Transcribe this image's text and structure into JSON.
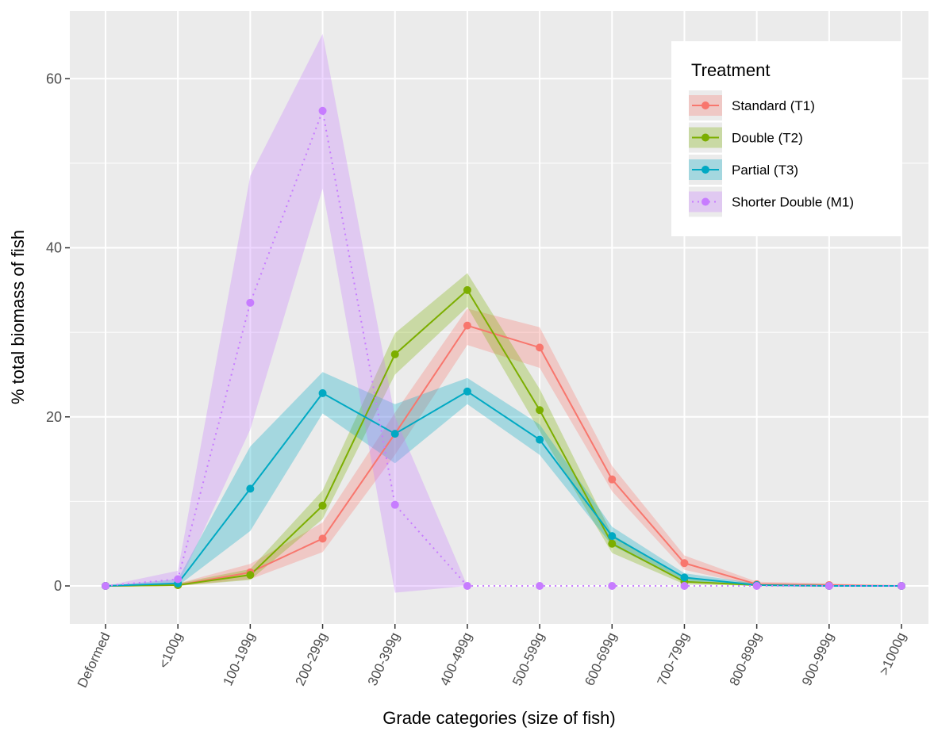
{
  "chart_data": {
    "type": "line",
    "title": "",
    "xlabel": "Grade categories (size of fish)",
    "ylabel": "% total biomass of fish",
    "categories": [
      "Deformed",
      "<100g",
      "100-199g",
      "200-299g",
      "300-399g",
      "400-499g",
      "500-599g",
      "600-699g",
      "700-799g",
      "800-899g",
      "900-999g",
      ">1000g"
    ],
    "ylim": [
      -4.5,
      68
    ],
    "yticks": [
      0,
      20,
      40,
      60
    ],
    "grid": true,
    "legend": {
      "title": "Treatment",
      "position": "top-right"
    },
    "series": [
      {
        "name": "Standard (T1)",
        "color": "#F8766D",
        "line": "solid",
        "values": [
          0,
          0.1,
          1.6,
          5.6,
          18.0,
          30.8,
          28.2,
          12.6,
          2.7,
          0.2,
          0.1,
          0
        ],
        "lower": [
          0,
          0,
          0.8,
          4.0,
          15.5,
          28.5,
          25.8,
          11.2,
          1.9,
          0,
          0,
          0
        ],
        "upper": [
          0,
          0.3,
          2.6,
          7.5,
          20.5,
          32.8,
          30.6,
          14.2,
          3.6,
          0.5,
          0.3,
          0
        ]
      },
      {
        "name": "Double (T2)",
        "color": "#7CAE00",
        "line": "solid",
        "values": [
          0,
          0.1,
          1.3,
          9.5,
          27.4,
          35.0,
          20.8,
          5.0,
          0.5,
          0.1,
          0,
          0
        ],
        "lower": [
          0,
          0,
          0.7,
          7.9,
          25.0,
          33.0,
          18.3,
          3.9,
          0.2,
          0,
          0,
          0
        ],
        "upper": [
          0,
          0.3,
          2.0,
          11.3,
          29.9,
          37.0,
          23.3,
          6.1,
          0.9,
          0.3,
          0.2,
          0
        ]
      },
      {
        "name": "Partial (T3)",
        "color": "#00A9C3",
        "line": "solid",
        "values": [
          0,
          0.3,
          11.5,
          22.8,
          18.0,
          23.0,
          17.3,
          5.9,
          1.0,
          0.1,
          0,
          0
        ],
        "lower": [
          0,
          0,
          6.5,
          20.4,
          14.5,
          21.5,
          15.5,
          4.8,
          0.5,
          0,
          0,
          0
        ],
        "upper": [
          0,
          0.8,
          16.5,
          25.3,
          21.5,
          24.6,
          19.1,
          7.0,
          1.5,
          0.3,
          0.2,
          0
        ]
      },
      {
        "name": "Shorter Double (M1)",
        "color": "#C77CFF",
        "line": "dotted",
        "values": [
          0,
          0.8,
          33.5,
          56.2,
          9.6,
          0,
          0,
          0,
          0,
          0,
          0,
          0
        ],
        "lower": [
          0,
          0,
          18.5,
          47.0,
          -0.8,
          0,
          0,
          0,
          0,
          0,
          0,
          0
        ],
        "upper": [
          0,
          1.8,
          48.5,
          65.3,
          20.0,
          0,
          0,
          0,
          0,
          0,
          0,
          0
        ]
      }
    ]
  }
}
